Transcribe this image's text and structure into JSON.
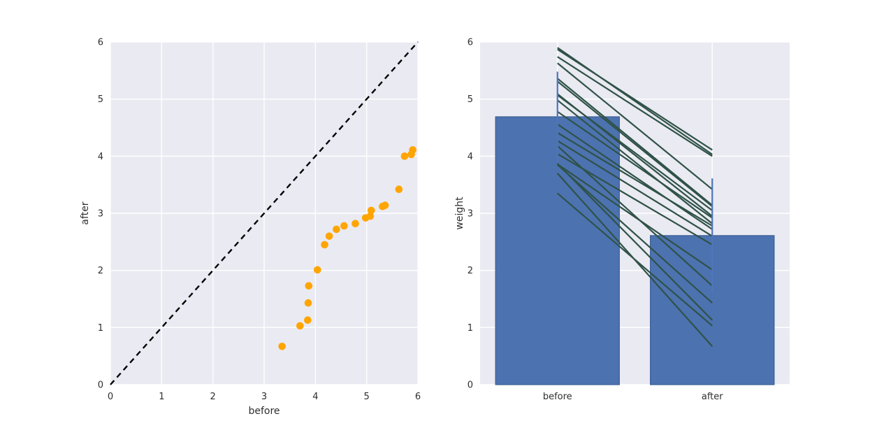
{
  "figure": {
    "background": "#ffffff",
    "axes_background": "#eaeaf2",
    "grid_color": "#ffffff",
    "tick_color": "#2e2e2e"
  },
  "chart_data": [
    {
      "type": "scatter",
      "xlabel": "before",
      "ylabel": "after",
      "xlim": [
        0,
        6
      ],
      "ylim": [
        0,
        6
      ],
      "xticks": [
        0,
        1,
        2,
        3,
        4,
        5,
        6
      ],
      "yticks": [
        0,
        1,
        2,
        3,
        4,
        5,
        6
      ],
      "grid": true,
      "marker_color": "#ffa500",
      "reference_line": {
        "style": "dashed",
        "color": "#000000",
        "x": [
          0,
          6
        ],
        "y": [
          0,
          6
        ]
      },
      "x": [
        3.35,
        3.7,
        3.85,
        3.86,
        3.87,
        4.04,
        4.18,
        4.27,
        4.41,
        4.56,
        4.78,
        4.98,
        5.07,
        5.09,
        5.31,
        5.36,
        5.63,
        5.74,
        5.87,
        5.9
      ],
      "y": [
        0.67,
        1.03,
        1.13,
        1.43,
        1.73,
        2.01,
        2.45,
        2.6,
        2.72,
        2.78,
        2.82,
        2.92,
        2.95,
        3.05,
        3.12,
        3.14,
        3.42,
        4.0,
        4.03,
        4.11
      ]
    },
    {
      "type": "bar",
      "categories": [
        "before",
        "after"
      ],
      "values": [
        4.69,
        2.61
      ],
      "ylabel": "weight",
      "ylim": [
        0,
        6
      ],
      "yticks": [
        0,
        1,
        2,
        3,
        4,
        5,
        6
      ],
      "grid": true,
      "bar_color": "#4c72b0",
      "bar_edge_color": "#3a5e94",
      "bar_width_fraction": 0.8,
      "error_bars": {
        "color": "#4f76bc",
        "ranges": [
          [
            3.9,
            5.48
          ],
          [
            1.61,
            3.61
          ]
        ]
      },
      "paired_lines": {
        "color": "#2f5247",
        "pairs": [
          [
            3.35,
            1.03
          ],
          [
            3.7,
            0.67
          ],
          [
            3.85,
            1.43
          ],
          [
            3.86,
            2.01
          ],
          [
            3.87,
            1.13
          ],
          [
            4.04,
            2.45
          ],
          [
            4.18,
            1.73
          ],
          [
            4.27,
            2.6
          ],
          [
            4.41,
            2.78
          ],
          [
            4.56,
            2.72
          ],
          [
            4.78,
            2.92
          ],
          [
            4.98,
            2.82
          ],
          [
            5.07,
            3.05
          ],
          [
            5.09,
            2.95
          ],
          [
            5.31,
            3.12
          ],
          [
            5.36,
            3.14
          ],
          [
            5.63,
            3.42
          ],
          [
            5.74,
            4.0
          ],
          [
            5.87,
            4.11
          ],
          [
            5.9,
            4.03
          ]
        ]
      }
    }
  ]
}
